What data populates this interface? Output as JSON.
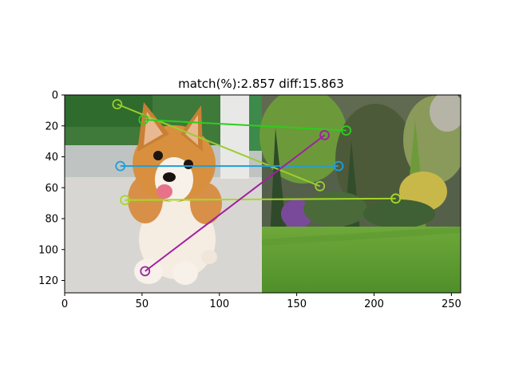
{
  "chart_data": {
    "type": "image-feature-matching",
    "title": "match(%):2.857 diff:15.863",
    "xlim": [
      0,
      256
    ],
    "ylim": [
      128,
      0
    ],
    "xticks": [
      0,
      50,
      100,
      150,
      200,
      250
    ],
    "yticks": [
      0,
      20,
      40,
      60,
      80,
      100,
      120
    ],
    "grid": false,
    "panels": [
      {
        "name": "left",
        "content": "corgi puppy photo",
        "x_range": [
          0,
          128
        ]
      },
      {
        "name": "right",
        "content": "garden photo",
        "x_range": [
          128,
          256
        ]
      }
    ],
    "matches": [
      {
        "x1": 34,
        "y1": 6,
        "x2": 165,
        "y2": 59,
        "color": "#9acd32"
      },
      {
        "x1": 51,
        "y1": 16,
        "x2": 182,
        "y2": 23,
        "color": "#2ecc1e"
      },
      {
        "x1": 36,
        "y1": 46,
        "x2": 177,
        "y2": 46,
        "color": "#1f9ed8"
      },
      {
        "x1": 39,
        "y1": 68,
        "x2": 214,
        "y2": 67,
        "color": "#a5d82b"
      },
      {
        "x1": 52,
        "y1": 114,
        "x2": 168,
        "y2": 26,
        "color": "#a020a0"
      }
    ]
  }
}
